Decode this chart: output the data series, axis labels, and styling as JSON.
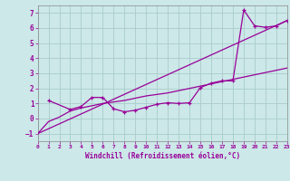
{
  "xlabel": "Windchill (Refroidissement éolien,°C)",
  "bg_color": "#cce8e8",
  "grid_color": "#aacccc",
  "line_color": "#990099",
  "xlim": [
    0,
    23
  ],
  "ylim": [
    -1.5,
    7.5
  ],
  "xticks": [
    0,
    1,
    2,
    3,
    4,
    5,
    6,
    7,
    8,
    9,
    10,
    11,
    12,
    13,
    14,
    15,
    16,
    17,
    18,
    19,
    20,
    21,
    22,
    23
  ],
  "yticks": [
    -1,
    0,
    1,
    2,
    3,
    4,
    5,
    6,
    7
  ],
  "line1_x": [
    0,
    23
  ],
  "line1_y": [
    -1.0,
    6.5
  ],
  "line2_x": [
    0,
    1,
    2,
    3,
    4,
    5,
    6,
    7,
    8,
    9,
    10,
    11,
    12,
    13,
    14,
    15,
    16,
    17,
    18,
    19,
    20,
    21,
    22,
    23
  ],
  "line2_y": [
    -1.0,
    -0.2,
    0.1,
    0.5,
    0.7,
    0.85,
    1.0,
    1.1,
    1.2,
    1.35,
    1.5,
    1.6,
    1.7,
    1.85,
    2.0,
    2.15,
    2.3,
    2.45,
    2.6,
    2.75,
    2.9,
    3.05,
    3.2,
    3.35
  ],
  "line3_x": [
    1,
    3,
    4,
    5,
    6,
    7,
    8,
    9,
    10,
    11,
    12,
    13,
    14,
    15,
    16,
    17,
    18,
    19,
    20,
    21,
    22,
    23
  ],
  "line3_y": [
    1.2,
    0.6,
    0.8,
    1.4,
    1.4,
    0.65,
    0.45,
    0.55,
    0.75,
    0.95,
    1.05,
    1.0,
    1.05,
    2.05,
    2.35,
    2.5,
    2.5,
    7.2,
    6.15,
    6.05,
    6.15,
    6.5
  ]
}
